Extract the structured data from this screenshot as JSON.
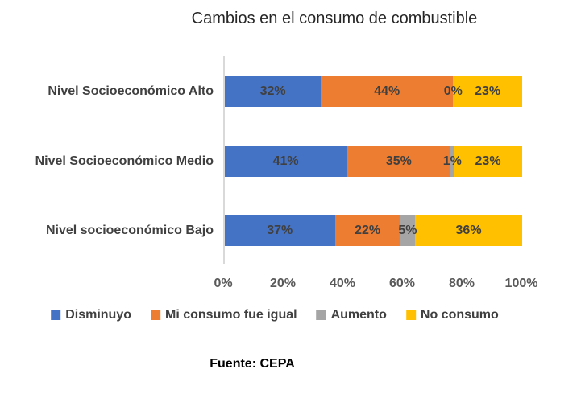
{
  "page": {
    "background": "#FFFFFF"
  },
  "chart_data": {
    "type": "bar",
    "orientation": "horizontal",
    "stacked": true,
    "normalized_to_100pct": true,
    "title": "Cambios en el consumo de combustible",
    "categories": [
      "Nivel Socioeconómico Alto",
      "Nivel Socioeconómico Medio",
      "Nivel socioeconómico Bajo"
    ],
    "series": [
      {
        "name": "Disminuyo",
        "color": "#4472C4",
        "values": [
          32,
          41,
          37
        ]
      },
      {
        "name": "Mi consumo fue igual",
        "color": "#ED7D31",
        "values": [
          44,
          35,
          22
        ]
      },
      {
        "name": "Aumento",
        "color": "#A5A5A5",
        "values": [
          0,
          1,
          5
        ]
      },
      {
        "name": "No consumo",
        "color": "#FFC000",
        "values": [
          23,
          23,
          36
        ]
      }
    ],
    "value_suffix": "%",
    "x_ticks": [
      "0%",
      "20%",
      "40%",
      "60%",
      "80%",
      "100%"
    ],
    "xlim": [
      0,
      100
    ],
    "xlabel": "",
    "ylabel": "",
    "grid": false,
    "legend_position": "bottom",
    "axis_line_color": "#D9D9D9",
    "label_color": "#404040",
    "tick_color": "#595959"
  },
  "source_note": {
    "text": "Fuente: CEPA"
  }
}
